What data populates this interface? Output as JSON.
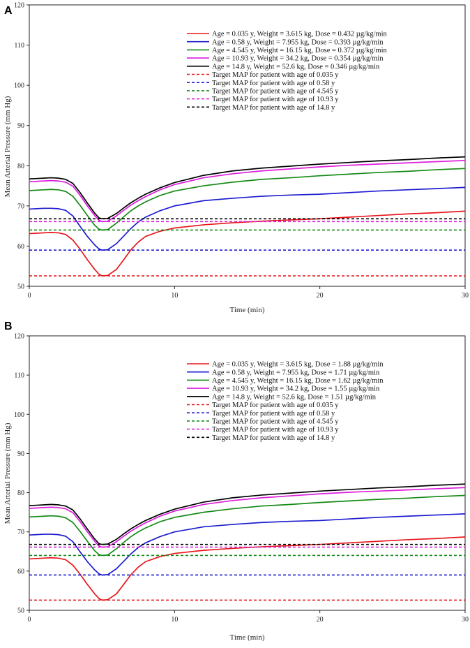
{
  "chart_data": [
    {
      "panel": "A",
      "type": "line",
      "xlabel": "Time (min)",
      "ylabel": "Mean Arterial Pressure (mm Hg)",
      "xlim": [
        0,
        30
      ],
      "ylim": [
        50,
        120
      ],
      "xticks": [
        0,
        10,
        20,
        30
      ],
      "yticks": [
        50,
        60,
        70,
        80,
        90,
        100,
        110,
        120
      ],
      "legend": "top-right",
      "series": [
        {
          "name": "Age = 0.035 y, Weight = 3.615 kg, Dose = 0.432 µg/kg/min",
          "color": "#e8161b",
          "style": "solid",
          "x": [
            0,
            0.5,
            1,
            1.5,
            2,
            2.5,
            3,
            3.5,
            4,
            4.5,
            4.8,
            5,
            5.4,
            6,
            6.5,
            7,
            7.5,
            8,
            9,
            10,
            12,
            14,
            16,
            18,
            20,
            22,
            24,
            26,
            28,
            30
          ],
          "y": [
            63.1,
            63.2,
            63.3,
            63.4,
            63.3,
            62.9,
            61.5,
            59.2,
            56.6,
            54.2,
            53.0,
            52.6,
            52.7,
            54.2,
            56.6,
            59.1,
            61.0,
            62.4,
            63.7,
            64.5,
            65.3,
            65.8,
            66.2,
            66.5,
            66.8,
            67.2,
            67.6,
            68.0,
            68.3,
            68.7
          ]
        },
        {
          "name": "Age = 0.58 y, Weight = 7.955 kg, Dose = 0.393 µg/kg/min",
          "color": "#1c1cd0",
          "style": "solid",
          "x": [
            0,
            0.5,
            1,
            1.5,
            2,
            2.5,
            3,
            3.5,
            4,
            4.5,
            4.8,
            5,
            5.4,
            6,
            6.5,
            7,
            7.5,
            8,
            9,
            10,
            12,
            14,
            16,
            18,
            20,
            22,
            24,
            26,
            28,
            30
          ],
          "y": [
            69.2,
            69.3,
            69.4,
            69.4,
            69.3,
            68.9,
            67.5,
            64.9,
            62.4,
            60.3,
            59.3,
            59.0,
            59.1,
            60.6,
            62.5,
            64.4,
            66.0,
            67.2,
            68.8,
            70.0,
            71.3,
            71.9,
            72.4,
            72.7,
            72.9,
            73.3,
            73.7,
            74.0,
            74.3,
            74.6
          ]
        },
        {
          "name": "Age = 4.545 y, Weight = 16.15 kg, Dose = 0.372 µg/kg/min",
          "color": "#158a15",
          "style": "solid",
          "x": [
            0,
            0.5,
            1,
            1.5,
            2,
            2.5,
            3,
            3.5,
            4,
            4.5,
            4.8,
            5,
            5.4,
            6,
            6.5,
            7,
            7.5,
            8,
            9,
            10,
            12,
            14,
            16,
            18,
            20,
            22,
            24,
            26,
            28,
            30
          ],
          "y": [
            73.8,
            73.9,
            74.0,
            74.1,
            74.0,
            73.6,
            72.4,
            70.1,
            67.6,
            65.2,
            64.2,
            64.0,
            64.1,
            65.7,
            67.3,
            68.8,
            70.0,
            71.0,
            72.6,
            73.7,
            75.0,
            75.9,
            76.6,
            77.0,
            77.5,
            77.9,
            78.3,
            78.6,
            79.0,
            79.3
          ]
        },
        {
          "name": "Age = 10.93 y, Weight = 34.2 kg, Dose = 0.354 µg/kg/min",
          "color": "#dd1ddd",
          "style": "solid",
          "x": [
            0,
            0.5,
            1,
            1.5,
            2,
            2.5,
            3,
            3.5,
            4,
            4.5,
            4.8,
            5,
            5.4,
            6,
            6.5,
            7,
            7.5,
            8,
            9,
            10,
            12,
            14,
            16,
            18,
            20,
            22,
            24,
            26,
            28,
            30
          ],
          "y": [
            76.0,
            76.1,
            76.2,
            76.3,
            76.2,
            75.9,
            74.9,
            72.6,
            70.0,
            67.6,
            66.4,
            66.1,
            66.2,
            67.5,
            68.9,
            70.2,
            71.3,
            72.3,
            74.0,
            75.3,
            77.0,
            78.0,
            78.7,
            79.2,
            79.7,
            80.1,
            80.4,
            80.7,
            81.0,
            81.3
          ]
        },
        {
          "name": "Age = 14.8 y, Weight = 52.6 kg, Dose = 0.346 µg/kg/min",
          "color": "#000000",
          "style": "solid",
          "x": [
            0,
            0.5,
            1,
            1.5,
            2,
            2.5,
            3,
            3.5,
            4,
            4.5,
            4.8,
            5,
            5.4,
            6,
            6.5,
            7,
            7.5,
            8,
            9,
            10,
            12,
            14,
            16,
            18,
            20,
            22,
            24,
            26,
            28,
            30
          ],
          "y": [
            76.7,
            76.8,
            76.9,
            77.0,
            76.9,
            76.6,
            75.6,
            73.3,
            70.7,
            68.2,
            67.0,
            66.8,
            66.9,
            68.1,
            69.5,
            70.8,
            71.9,
            72.9,
            74.5,
            75.8,
            77.6,
            78.7,
            79.4,
            79.9,
            80.4,
            80.8,
            81.2,
            81.5,
            81.9,
            82.2
          ]
        },
        {
          "name": "Target MAP for patient with age of 0.035 y",
          "color": "#e8161b",
          "style": "dashed",
          "x": [
            0,
            30
          ],
          "y": [
            52.6,
            52.6
          ]
        },
        {
          "name": "Target MAP for patient with age of 0.58 y",
          "color": "#1c1cd0",
          "style": "dashed",
          "x": [
            0,
            30
          ],
          "y": [
            59.0,
            59.0
          ]
        },
        {
          "name": "Target MAP for patient with age of 4.545 y",
          "color": "#158a15",
          "style": "dashed",
          "x": [
            0,
            30
          ],
          "y": [
            64.0,
            64.0
          ]
        },
        {
          "name": "Target MAP for patient with age of 10.93 y",
          "color": "#dd1ddd",
          "style": "dashed",
          "x": [
            0,
            30
          ],
          "y": [
            66.1,
            66.1
          ]
        },
        {
          "name": "Target MAP for patient with age of 14.8 y",
          "color": "#000000",
          "style": "dashed",
          "x": [
            0,
            30
          ],
          "y": [
            66.8,
            66.8
          ]
        }
      ]
    },
    {
      "panel": "B",
      "type": "line",
      "xlabel": "Time (min)",
      "ylabel": "Mean Arterial Pressure (mm Hg)",
      "xlim": [
        0,
        30
      ],
      "ylim": [
        50,
        120
      ],
      "xticks": [
        0,
        10,
        20,
        30
      ],
      "yticks": [
        50,
        60,
        70,
        80,
        90,
        100,
        110,
        120
      ],
      "legend": "top-right",
      "series": [
        {
          "name": "Age = 0.035 y, Weight = 3.615 kg, Dose = 1.88 µg/kg/min",
          "color": "#e8161b",
          "style": "solid",
          "x": [
            0,
            0.5,
            1,
            1.5,
            2,
            2.5,
            3,
            3.5,
            4,
            4.5,
            4.8,
            5,
            5.4,
            6,
            6.5,
            7,
            7.5,
            8,
            9,
            10,
            12,
            14,
            16,
            18,
            20,
            22,
            24,
            26,
            28,
            30
          ],
          "y": [
            63.1,
            63.2,
            63.3,
            63.4,
            63.3,
            62.9,
            61.5,
            59.2,
            56.6,
            54.2,
            53.0,
            52.6,
            52.7,
            54.2,
            56.6,
            59.1,
            61.0,
            62.4,
            63.7,
            64.5,
            65.3,
            65.8,
            66.2,
            66.5,
            66.8,
            67.2,
            67.6,
            68.0,
            68.3,
            68.7
          ]
        },
        {
          "name": "Age = 0.58 y, Weight = 7.955 kg, Dose = 1.71 µg/kg/min",
          "color": "#1c1cd0",
          "style": "solid",
          "x": [
            0,
            0.5,
            1,
            1.5,
            2,
            2.5,
            3,
            3.5,
            4,
            4.5,
            4.8,
            5,
            5.4,
            6,
            6.5,
            7,
            7.5,
            8,
            9,
            10,
            12,
            14,
            16,
            18,
            20,
            22,
            24,
            26,
            28,
            30
          ],
          "y": [
            69.2,
            69.3,
            69.4,
            69.4,
            69.3,
            68.9,
            67.5,
            64.9,
            62.4,
            60.3,
            59.3,
            59.0,
            59.1,
            60.6,
            62.5,
            64.4,
            66.0,
            67.2,
            68.8,
            70.0,
            71.3,
            71.9,
            72.4,
            72.7,
            72.9,
            73.3,
            73.7,
            74.0,
            74.3,
            74.6
          ]
        },
        {
          "name": "Age = 4.545 y, Weight = 16.15 kg, Dose = 1.62 µg/kg/min",
          "color": "#158a15",
          "style": "solid",
          "x": [
            0,
            0.5,
            1,
            1.5,
            2,
            2.5,
            3,
            3.5,
            4,
            4.5,
            4.8,
            5,
            5.4,
            6,
            6.5,
            7,
            7.5,
            8,
            9,
            10,
            12,
            14,
            16,
            18,
            20,
            22,
            24,
            26,
            28,
            30
          ],
          "y": [
            73.8,
            73.9,
            74.0,
            74.1,
            74.0,
            73.6,
            72.4,
            70.1,
            67.6,
            65.2,
            64.2,
            64.0,
            64.1,
            65.7,
            67.3,
            68.8,
            70.0,
            71.0,
            72.6,
            73.7,
            75.0,
            75.9,
            76.6,
            77.0,
            77.5,
            77.9,
            78.3,
            78.6,
            79.0,
            79.3
          ]
        },
        {
          "name": "Age = 10.93 y, Weight = 34.2 kg, Dose = 1.55 µg/kg/min",
          "color": "#dd1ddd",
          "style": "solid",
          "x": [
            0,
            0.5,
            1,
            1.5,
            2,
            2.5,
            3,
            3.5,
            4,
            4.5,
            4.8,
            5,
            5.4,
            6,
            6.5,
            7,
            7.5,
            8,
            9,
            10,
            12,
            14,
            16,
            18,
            20,
            22,
            24,
            26,
            28,
            30
          ],
          "y": [
            76.0,
            76.1,
            76.2,
            76.3,
            76.2,
            75.9,
            74.9,
            72.6,
            70.0,
            67.6,
            66.4,
            66.1,
            66.2,
            67.5,
            68.9,
            70.2,
            71.3,
            72.3,
            74.0,
            75.3,
            77.0,
            78.0,
            78.7,
            79.2,
            79.7,
            80.1,
            80.4,
            80.7,
            81.0,
            81.3
          ]
        },
        {
          "name": "Age = 14.8 y, Weight = 52.6 kg, Dose = 1.51 µg/kg/min",
          "color": "#000000",
          "style": "solid",
          "x": [
            0,
            0.5,
            1,
            1.5,
            2,
            2.5,
            3,
            3.5,
            4,
            4.5,
            4.8,
            5,
            5.4,
            6,
            6.5,
            7,
            7.5,
            8,
            9,
            10,
            12,
            14,
            16,
            18,
            20,
            22,
            24,
            26,
            28,
            30
          ],
          "y": [
            76.7,
            76.8,
            76.9,
            77.0,
            76.9,
            76.6,
            75.6,
            73.3,
            70.7,
            68.2,
            67.0,
            66.8,
            66.9,
            68.1,
            69.5,
            70.8,
            71.9,
            72.9,
            74.5,
            75.8,
            77.6,
            78.7,
            79.4,
            79.9,
            80.4,
            80.8,
            81.2,
            81.5,
            81.9,
            82.2
          ]
        },
        {
          "name": "Target MAP for patient with age of 0.035 y",
          "color": "#e8161b",
          "style": "dashed",
          "x": [
            0,
            30
          ],
          "y": [
            52.6,
            52.6
          ]
        },
        {
          "name": "Target MAP for patient with age of 0.58 y",
          "color": "#1c1cd0",
          "style": "dashed",
          "x": [
            0,
            30
          ],
          "y": [
            59.0,
            59.0
          ]
        },
        {
          "name": "Target MAP for patient with age of 4.545 y",
          "color": "#158a15",
          "style": "dashed",
          "x": [
            0,
            30
          ],
          "y": [
            64.0,
            64.0
          ]
        },
        {
          "name": "Target MAP for patient with age of 10.93 y",
          "color": "#dd1ddd",
          "style": "dashed",
          "x": [
            0,
            30
          ],
          "y": [
            66.1,
            66.1
          ]
        },
        {
          "name": "Target MAP for patient with age of 14.8 y",
          "color": "#000000",
          "style": "dashed",
          "x": [
            0,
            30
          ],
          "y": [
            66.8,
            66.8
          ]
        }
      ]
    }
  ]
}
